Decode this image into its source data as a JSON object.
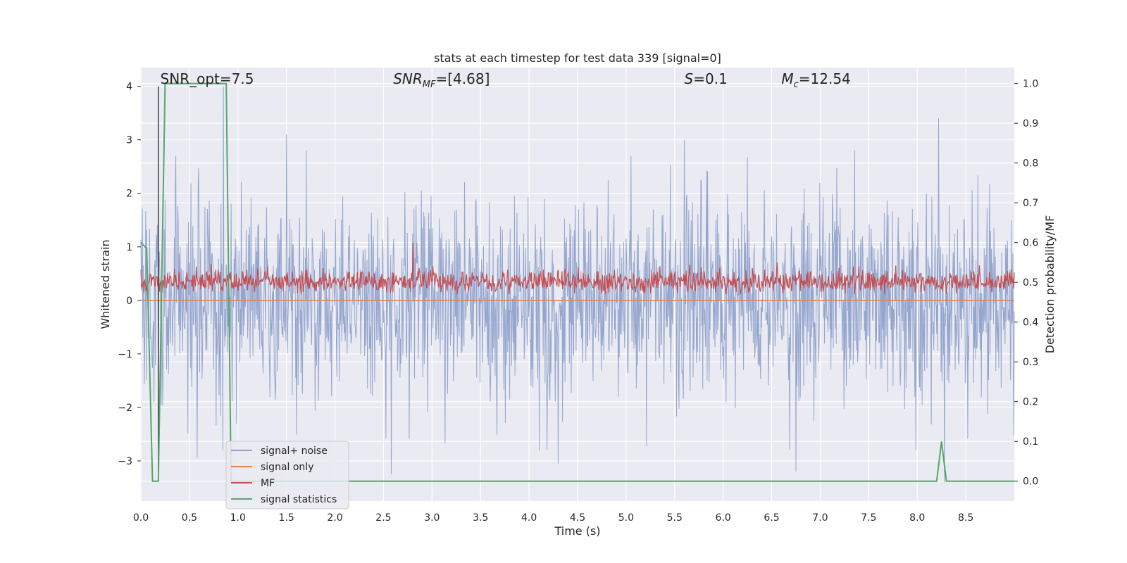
{
  "chart_data": {
    "type": "line",
    "title": "stats at each timestep for test data 339 [signal=0]",
    "xlabel": "Time (s)",
    "ylabel_left": "Whitened strain",
    "ylabel_right": "Detection probability/MF",
    "xlim": [
      0.0,
      9.0
    ],
    "ylim_left": [
      -3.75,
      4.35
    ],
    "ylim_right": [
      -0.05,
      1.04
    ],
    "x_ticks": [
      0.0,
      0.5,
      1.0,
      1.5,
      2.0,
      2.5,
      3.0,
      3.5,
      4.0,
      4.5,
      5.0,
      5.5,
      6.0,
      6.5,
      7.0,
      7.5,
      8.0,
      8.5
    ],
    "x_tick_labels": [
      "0.0",
      "0.5",
      "1.0",
      "1.5",
      "2.0",
      "2.5",
      "3.0",
      "3.5",
      "4.0",
      "4.5",
      "5.0",
      "5.5",
      "6.0",
      "6.5",
      "7.0",
      "7.5",
      "8.0",
      "8.5"
    ],
    "y_left_ticks": [
      -3,
      -2,
      -1,
      0,
      1,
      2,
      3,
      4
    ],
    "y_left_tick_labels": [
      "−3",
      "−2",
      "−1",
      "0",
      "1",
      "2",
      "3",
      "4"
    ],
    "y_right_ticks": [
      0.0,
      0.1,
      0.2,
      0.3,
      0.4,
      0.5,
      0.6,
      0.7,
      0.8,
      0.9,
      1.0
    ],
    "y_right_tick_labels": [
      "0.0",
      "0.1",
      "0.2",
      "0.3",
      "0.4",
      "0.5",
      "0.6",
      "0.7",
      "0.8",
      "0.9",
      "1.0"
    ],
    "grid": true,
    "annotations": [
      {
        "text": "SNR_opt=7.5",
        "x": 0.2,
        "y": 4.1
      },
      {
        "text": "SNR_MF=[4.68]",
        "x": 2.6,
        "y": 4.1
      },
      {
        "text": "S=0.1",
        "x": 5.6,
        "y": 4.1
      },
      {
        "text": "M_c=12.54",
        "x": 6.6,
        "y": 4.1
      }
    ],
    "legend": {
      "placement": "lower-left",
      "entries": [
        "signal+ noise",
        "signal only",
        "MF",
        "signal statistics"
      ]
    },
    "series": [
      {
        "name": "signal+ noise",
        "color": "#8c9fca",
        "axis": "left",
        "kind": "noise",
        "amplitude_std": 0.95,
        "notable_peaks": [
          [
            0.85,
            4.0
          ],
          [
            0.36,
            2.7
          ],
          [
            1.5,
            3.1
          ],
          [
            8.22,
            3.4
          ],
          [
            5.6,
            3.0
          ],
          [
            5.05,
            2.7
          ]
        ],
        "notable_troughs": [
          [
            0.58,
            -2.95
          ],
          [
            2.58,
            -3.25
          ],
          [
            4.3,
            -3.05
          ],
          [
            6.75,
            -3.2
          ],
          [
            8.28,
            -3.4
          ]
        ]
      },
      {
        "name": "signal only",
        "color": "#dd8452",
        "axis": "left",
        "x": [
          0.0,
          9.0
        ],
        "y": [
          0.0,
          0.0
        ]
      },
      {
        "name": "MF",
        "color": "#c44e52",
        "axis": "right",
        "kind": "noise",
        "baseline": 0.5,
        "amplitude_range": [
          0.47,
          0.55
        ],
        "notable_peaks": [
          [
            2.8,
            0.6
          ]
        ]
      },
      {
        "name": "signal statistics",
        "color": "#55a868",
        "axis": "right",
        "x": [
          0.0,
          0.06,
          0.12,
          0.18,
          0.25,
          0.3,
          0.85,
          0.88,
          0.93,
          8.2,
          8.25,
          8.3,
          8.35,
          9.0
        ],
        "y": [
          0.6,
          0.585,
          0.0,
          0.0,
          1.0,
          1.0,
          1.0,
          1.0,
          0.0,
          0.0,
          0.1,
          0.0,
          0.0,
          0.0
        ]
      }
    ],
    "vertical_marker": {
      "x": 0.18,
      "color": "#404040"
    }
  }
}
